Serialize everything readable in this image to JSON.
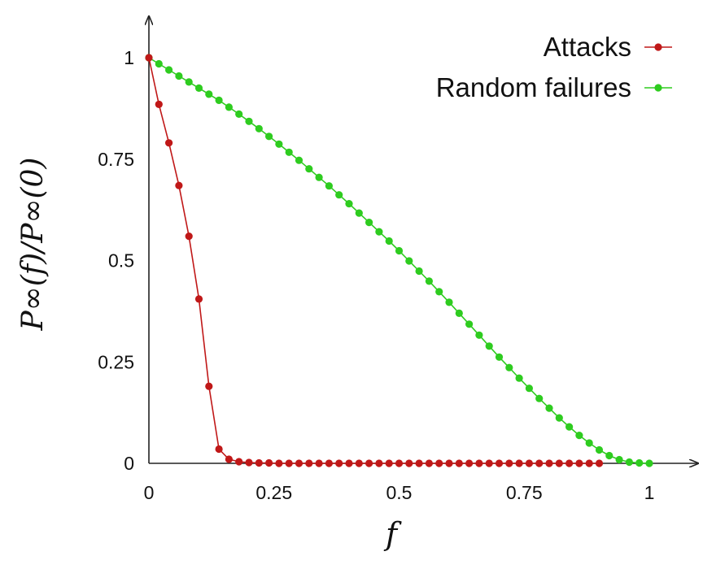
{
  "chart_data": {
    "type": "line",
    "xlabel": "f",
    "ylabel": "P∞(f)/P∞(0)",
    "xlim": [
      0,
      1
    ],
    "ylim": [
      0,
      1
    ],
    "x_ticks": [
      0,
      0.25,
      0.5,
      0.75,
      1
    ],
    "x_tick_labels": [
      "0",
      "0.25",
      "0.5",
      "0.75",
      "1"
    ],
    "y_ticks": [
      0,
      0.25,
      0.5,
      0.75,
      1
    ],
    "y_tick_labels": [
      "0",
      "0.25",
      "0.5",
      "0.75",
      "1"
    ],
    "grid": false,
    "legend_position": "top-right",
    "series": [
      {
        "name": "Attacks",
        "color": "#c01818",
        "x": [
          0,
          0.02,
          0.04,
          0.06,
          0.08,
          0.1,
          0.12,
          0.14,
          0.16,
          0.18,
          0.2,
          0.22,
          0.24,
          0.26,
          0.28,
          0.3,
          0.32,
          0.34,
          0.36,
          0.38,
          0.4,
          0.42,
          0.44,
          0.46,
          0.48,
          0.5,
          0.52,
          0.54,
          0.56,
          0.58,
          0.6,
          0.62,
          0.64,
          0.66,
          0.68,
          0.7,
          0.72,
          0.74,
          0.76,
          0.78,
          0.8,
          0.82,
          0.84,
          0.86,
          0.88,
          0.9
        ],
        "y": [
          1,
          0.885,
          0.79,
          0.685,
          0.56,
          0.405,
          0.19,
          0.035,
          0.01,
          0.004,
          0.002,
          0.001,
          0.001,
          0,
          0,
          0,
          0,
          0,
          0,
          0,
          0,
          0,
          0,
          0,
          0,
          0,
          0,
          0,
          0,
          0,
          0,
          0,
          0,
          0,
          0,
          0,
          0,
          0,
          0,
          0,
          0,
          0,
          0,
          0,
          0,
          0
        ]
      },
      {
        "name": "Random failures",
        "color": "#2ecc1f",
        "x": [
          0,
          0.02,
          0.04,
          0.06,
          0.08,
          0.1,
          0.12,
          0.14,
          0.16,
          0.18,
          0.2,
          0.22,
          0.24,
          0.26,
          0.28,
          0.3,
          0.32,
          0.34,
          0.36,
          0.38,
          0.4,
          0.42,
          0.44,
          0.46,
          0.48,
          0.5,
          0.52,
          0.54,
          0.56,
          0.58,
          0.6,
          0.62,
          0.64,
          0.66,
          0.68,
          0.7,
          0.72,
          0.74,
          0.76,
          0.78,
          0.8,
          0.82,
          0.84,
          0.86,
          0.88,
          0.9,
          0.92,
          0.94,
          0.96,
          0.98,
          1
        ],
        "y": [
          1,
          0.985,
          0.97,
          0.955,
          0.94,
          0.925,
          0.91,
          0.895,
          0.878,
          0.861,
          0.843,
          0.825,
          0.806,
          0.787,
          0.767,
          0.747,
          0.726,
          0.705,
          0.684,
          0.662,
          0.64,
          0.617,
          0.594,
          0.571,
          0.548,
          0.524,
          0.499,
          0.474,
          0.449,
          0.423,
          0.397,
          0.37,
          0.343,
          0.316,
          0.289,
          0.262,
          0.236,
          0.21,
          0.185,
          0.16,
          0.136,
          0.112,
          0.09,
          0.069,
          0.05,
          0.033,
          0.019,
          0.009,
          0.003,
          0.001,
          0
        ]
      }
    ]
  }
}
